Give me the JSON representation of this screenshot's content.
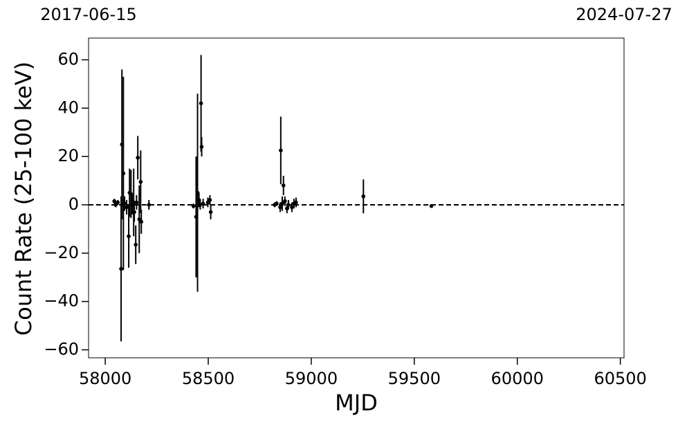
{
  "chart_data": {
    "type": "errorbar",
    "xlabel": "MJD",
    "ylabel": "Count Rate (25-100 keV)",
    "xlim": [
      57919,
      60518
    ],
    "ylim": [
      -63.3,
      69
    ],
    "xticks": [
      58000,
      58500,
      59000,
      59500,
      60000,
      60500
    ],
    "yticks": [
      {
        "value": -60,
        "label": "−60"
      },
      {
        "value": -40,
        "label": "−40"
      },
      {
        "value": -20,
        "label": "−20"
      },
      0,
      20,
      40,
      60
    ],
    "x2ticks": [
      {
        "value": 57919,
        "label": "2017-06-15"
      },
      {
        "value": 60518,
        "label": "2024-07-27"
      }
    ],
    "hline": 0,
    "series": [
      {
        "color": "#000000",
        "x": [
          58044,
          58051,
          58061,
          58077,
          58081,
          58088,
          58094,
          58104,
          58114,
          58118,
          58125,
          58131,
          58138,
          58141,
          58148,
          58152,
          58158,
          58165,
          58172,
          58175,
          58212,
          58428,
          58441,
          58448,
          58455,
          58461,
          58465,
          58468,
          58475,
          58498,
          58508,
          58512,
          58822,
          58832,
          58849,
          58852,
          58859,
          58865,
          58872,
          58882,
          58889,
          58906,
          58916,
          58926,
          59253,
          59583
        ],
        "values": [
          1.5,
          0,
          1,
          -26.5,
          25,
          13,
          0.5,
          -1,
          -13,
          5,
          4.5,
          0,
          1,
          -3,
          -16.5,
          1,
          19.5,
          -6,
          9.5,
          -7,
          0,
          -0.5,
          -5,
          5,
          2,
          0,
          42,
          24,
          0.5,
          1,
          2,
          -3,
          0,
          0.5,
          -1,
          22.5,
          0.5,
          8,
          1.5,
          -1.5,
          0,
          -1,
          0.5,
          1,
          3.5,
          -0.5
        ],
        "errors": [
          1,
          1,
          1,
          30,
          31,
          40,
          3,
          3,
          13,
          10,
          10,
          4,
          14,
          4,
          8,
          3,
          9,
          14,
          13,
          5,
          2,
          1,
          25,
          41,
          3,
          2,
          20,
          4,
          2,
          2,
          2,
          3,
          1,
          1,
          2,
          14,
          3,
          4,
          2,
          2,
          2,
          2,
          2,
          2,
          7,
          0.5
        ]
      }
    ]
  }
}
